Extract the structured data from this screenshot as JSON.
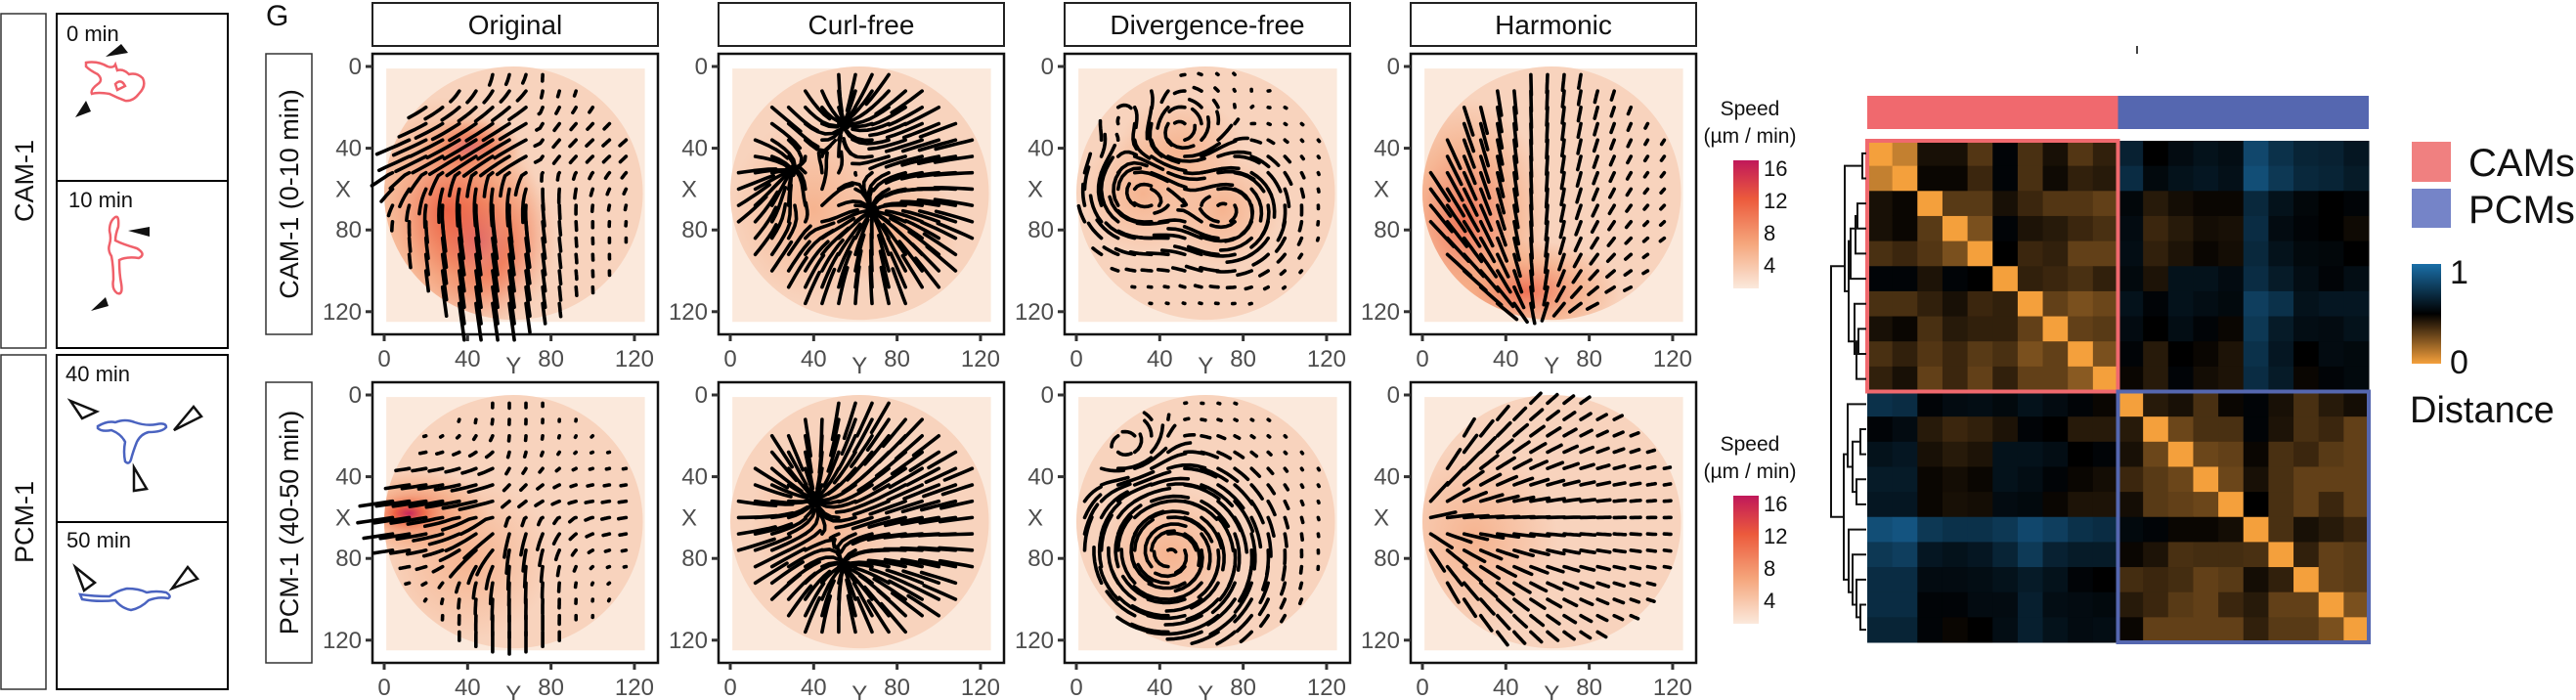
{
  "panel_letter": "G",
  "left_panel": {
    "groups": [
      {
        "label": "CAM-1",
        "frames": [
          "0 min",
          "10 min"
        ],
        "color": "#f0606a",
        "arrowhead": "filled"
      },
      {
        "label": "PCM-1",
        "frames": [
          "40 min",
          "50 min"
        ],
        "color": "#4a63c0",
        "arrowhead": "open"
      }
    ]
  },
  "vector_fields": {
    "columns": [
      "Original",
      "Curl-free",
      "Divergence-free",
      "Harmonic"
    ],
    "rows": [
      "CAM-1 (0-10 min)",
      "PCM-1 (40-50 min)"
    ],
    "x_axis_label": "Y",
    "y_axis_label": "X",
    "x_ticks": [
      "0",
      "40",
      "80",
      "120"
    ],
    "y_ticks": [
      "0",
      "40",
      "80",
      "120"
    ],
    "speed_legend": {
      "title": "Speed",
      "unit": "(µm / min)",
      "ticks": [
        "16",
        "12",
        "8",
        "4"
      ],
      "colors": [
        "#fbe9dc",
        "#f5a67c",
        "#ec5a3c",
        "#c0185a"
      ]
    }
  },
  "heatmap": {
    "annotation": [
      {
        "label": "CAMs",
        "color": "#f0696e",
        "count": 10
      },
      {
        "label": "PCMs",
        "color": "#5567b0",
        "count": 10
      }
    ],
    "legend": {
      "title": "Distance",
      "max_label": "1",
      "min_label": "0",
      "colors": [
        "#f4a03c",
        "#000000",
        "#1a6fa8"
      ]
    },
    "matrix": [
      [
        0,
        0.1,
        0.45,
        0.45,
        0.33,
        0.52,
        0.35,
        0.45,
        0.33,
        0.4,
        0.65,
        0.5,
        0.55,
        0.58,
        0.56,
        0.82,
        0.72,
        0.66,
        0.65,
        0.6
      ],
      [
        0.1,
        0,
        0.48,
        0.48,
        0.38,
        0.52,
        0.35,
        0.47,
        0.4,
        0.42,
        0.7,
        0.54,
        0.58,
        0.6,
        0.57,
        0.85,
        0.75,
        0.68,
        0.66,
        0.62
      ],
      [
        0.45,
        0.48,
        0,
        0.32,
        0.32,
        0.45,
        0.38,
        0.33,
        0.33,
        0.3,
        0.53,
        0.42,
        0.46,
        0.48,
        0.48,
        0.68,
        0.58,
        0.53,
        0.5,
        0.52
      ],
      [
        0.45,
        0.48,
        0.32,
        0,
        0.25,
        0.52,
        0.44,
        0.42,
        0.38,
        0.35,
        0.55,
        0.38,
        0.42,
        0.46,
        0.45,
        0.7,
        0.55,
        0.52,
        0.5,
        0.47
      ],
      [
        0.35,
        0.38,
        0.33,
        0.25,
        0,
        0.5,
        0.38,
        0.4,
        0.3,
        0.3,
        0.56,
        0.4,
        0.44,
        0.48,
        0.46,
        0.68,
        0.58,
        0.54,
        0.53,
        0.5
      ],
      [
        0.52,
        0.52,
        0.44,
        0.52,
        0.5,
        0,
        0.4,
        0.38,
        0.35,
        0.4,
        0.54,
        0.44,
        0.58,
        0.58,
        0.55,
        0.7,
        0.62,
        0.56,
        0.52,
        0.56
      ],
      [
        0.35,
        0.35,
        0.4,
        0.45,
        0.38,
        0.4,
        0,
        0.3,
        0.25,
        0.28,
        0.58,
        0.52,
        0.58,
        0.56,
        0.54,
        0.78,
        0.72,
        0.58,
        0.6,
        0.6
      ],
      [
        0.45,
        0.48,
        0.35,
        0.42,
        0.4,
        0.4,
        0.3,
        0,
        0.3,
        0.32,
        0.55,
        0.5,
        0.56,
        0.52,
        0.48,
        0.75,
        0.62,
        0.56,
        0.55,
        0.58
      ],
      [
        0.35,
        0.4,
        0.33,
        0.38,
        0.32,
        0.35,
        0.25,
        0.3,
        0,
        0.25,
        0.52,
        0.42,
        0.5,
        0.48,
        0.44,
        0.72,
        0.6,
        0.5,
        0.55,
        0.54
      ],
      [
        0.4,
        0.45,
        0.3,
        0.38,
        0.3,
        0.4,
        0.3,
        0.3,
        0.22,
        0,
        0.48,
        0.42,
        0.52,
        0.46,
        0.44,
        0.7,
        0.62,
        0.48,
        0.52,
        0.54
      ],
      [
        0.72,
        0.7,
        0.52,
        0.55,
        0.56,
        0.54,
        0.58,
        0.55,
        0.52,
        0.48,
        0,
        0.42,
        0.45,
        0.35,
        0.48,
        0.52,
        0.45,
        0.35,
        0.42,
        0.46
      ],
      [
        0.52,
        0.55,
        0.42,
        0.38,
        0.4,
        0.44,
        0.52,
        0.5,
        0.42,
        0.42,
        0.42,
        0,
        0.28,
        0.35,
        0.35,
        0.52,
        0.44,
        0.35,
        0.38,
        0.3
      ],
      [
        0.58,
        0.6,
        0.45,
        0.42,
        0.44,
        0.58,
        0.58,
        0.56,
        0.5,
        0.52,
        0.45,
        0.28,
        0,
        0.28,
        0.3,
        0.48,
        0.35,
        0.38,
        0.32,
        0.3
      ],
      [
        0.62,
        0.62,
        0.48,
        0.46,
        0.48,
        0.58,
        0.56,
        0.52,
        0.48,
        0.46,
        0.38,
        0.32,
        0.28,
        0,
        0.28,
        0.45,
        0.35,
        0.3,
        0.3,
        0.3
      ],
      [
        0.6,
        0.6,
        0.48,
        0.45,
        0.46,
        0.55,
        0.54,
        0.48,
        0.44,
        0.44,
        0.46,
        0.32,
        0.3,
        0.28,
        0,
        0.5,
        0.35,
        0.3,
        0.38,
        0.3
      ],
      [
        0.85,
        0.88,
        0.75,
        0.72,
        0.72,
        0.75,
        0.82,
        0.78,
        0.72,
        0.7,
        0.54,
        0.52,
        0.48,
        0.48,
        0.46,
        0,
        0.35,
        0.45,
        0.42,
        0.38
      ],
      [
        0.75,
        0.78,
        0.6,
        0.58,
        0.6,
        0.66,
        0.76,
        0.65,
        0.62,
        0.62,
        0.48,
        0.44,
        0.35,
        0.36,
        0.36,
        0.35,
        0,
        0.4,
        0.3,
        0.32
      ],
      [
        0.7,
        0.7,
        0.55,
        0.55,
        0.56,
        0.58,
        0.62,
        0.58,
        0.52,
        0.5,
        0.36,
        0.38,
        0.36,
        0.3,
        0.32,
        0.46,
        0.4,
        0,
        0.3,
        0.32
      ],
      [
        0.7,
        0.7,
        0.52,
        0.52,
        0.55,
        0.55,
        0.64,
        0.56,
        0.55,
        0.54,
        0.42,
        0.38,
        0.32,
        0.3,
        0.38,
        0.42,
        0.3,
        0.3,
        0,
        0.25
      ],
      [
        0.66,
        0.66,
        0.52,
        0.48,
        0.5,
        0.56,
        0.64,
        0.58,
        0.55,
        0.56,
        0.48,
        0.3,
        0.3,
        0.3,
        0.3,
        0.4,
        0.32,
        0.32,
        0.25,
        0
      ]
    ]
  }
}
